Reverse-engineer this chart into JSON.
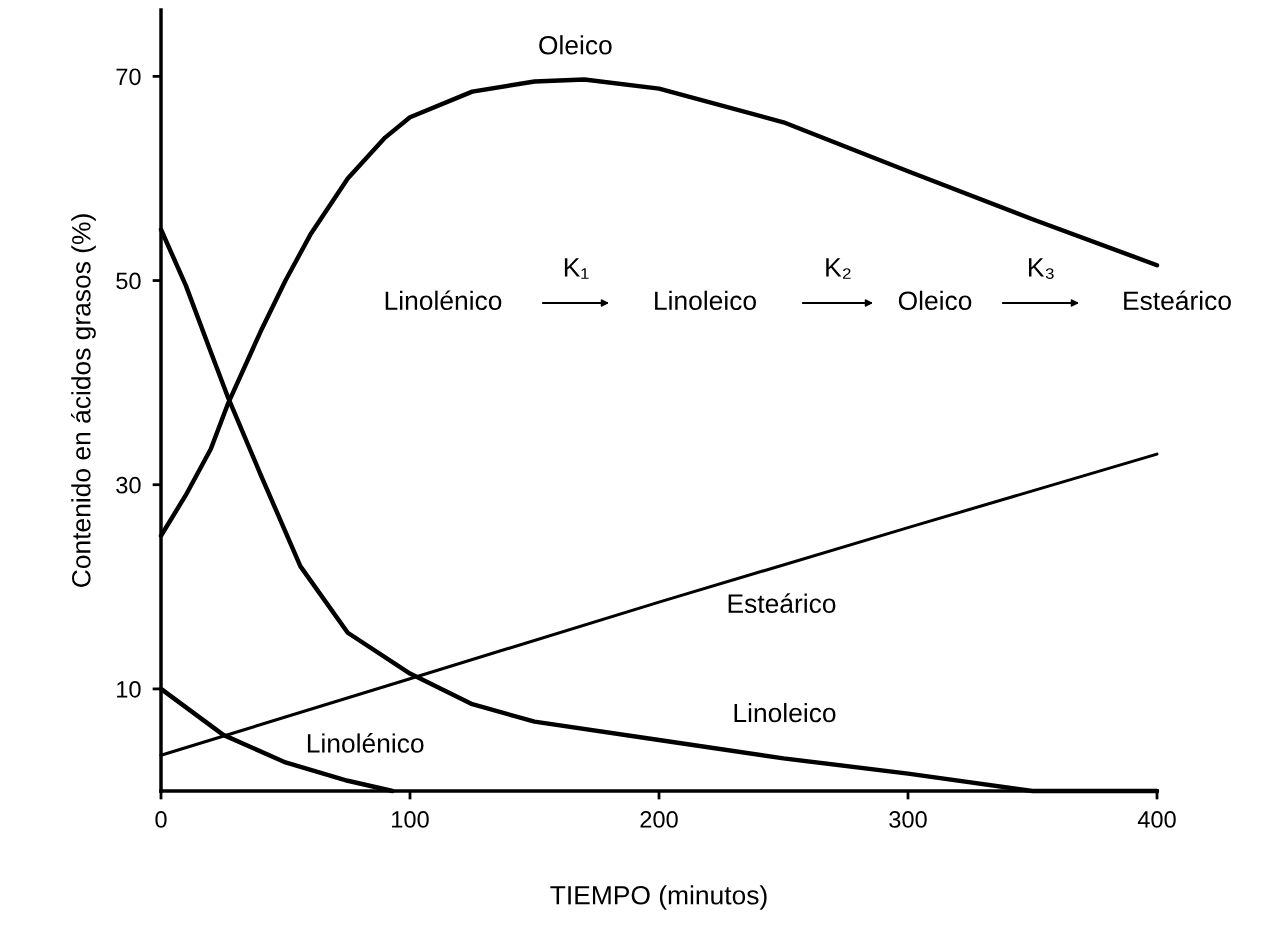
{
  "chart_data": {
    "type": "line",
    "xlabel": "TIEMPO (minutos)",
    "ylabel": "Contenido en ácidos grasos (%)",
    "xlim": [
      0,
      400
    ],
    "xticks": [
      0,
      100,
      200,
      300,
      400
    ],
    "ylim": [
      0,
      76.5
    ],
    "yticks": [
      10,
      30,
      50,
      70
    ],
    "grid": false,
    "legend": false,
    "marker": "none",
    "line_style": "solid",
    "series": [
      {
        "name": "Oleico",
        "color": "#000000",
        "x": [
          0,
          10,
          20,
          27,
          40,
          50,
          60,
          75,
          90,
          100,
          125,
          150,
          170,
          200,
          250,
          300,
          350,
          400
        ],
        "values": [
          25,
          29,
          33.5,
          38,
          45,
          50,
          54.5,
          60,
          64,
          66,
          68.5,
          69.5,
          69.7,
          68.8,
          65.5,
          60.7,
          56,
          51.5
        ]
      },
      {
        "name": "Linoleico",
        "color": "#000000",
        "x": [
          0,
          10,
          20,
          27,
          40,
          56,
          75,
          100,
          125,
          150,
          200,
          250,
          300,
          350,
          400
        ],
        "values": [
          55,
          49.5,
          43,
          38.5,
          31,
          22,
          15.5,
          11.5,
          8.5,
          6.8,
          5,
          3.2,
          1.7,
          0,
          0
        ]
      },
      {
        "name": "Esteárico",
        "color": "#000000",
        "x": [
          0,
          100,
          200,
          300,
          400
        ],
        "values": [
          3.5,
          11,
          18.5,
          25.8,
          33
        ]
      },
      {
        "name": "Linolénico",
        "color": "#000000",
        "x": [
          0,
          25,
          50,
          75,
          93
        ],
        "values": [
          10,
          5.5,
          2.8,
          1,
          0
        ]
      }
    ],
    "annotations": [
      "Linolénico",
      "K₁",
      "Linoleico",
      "K₂",
      "Oleico",
      "K₃",
      "Esteárico"
    ]
  }
}
